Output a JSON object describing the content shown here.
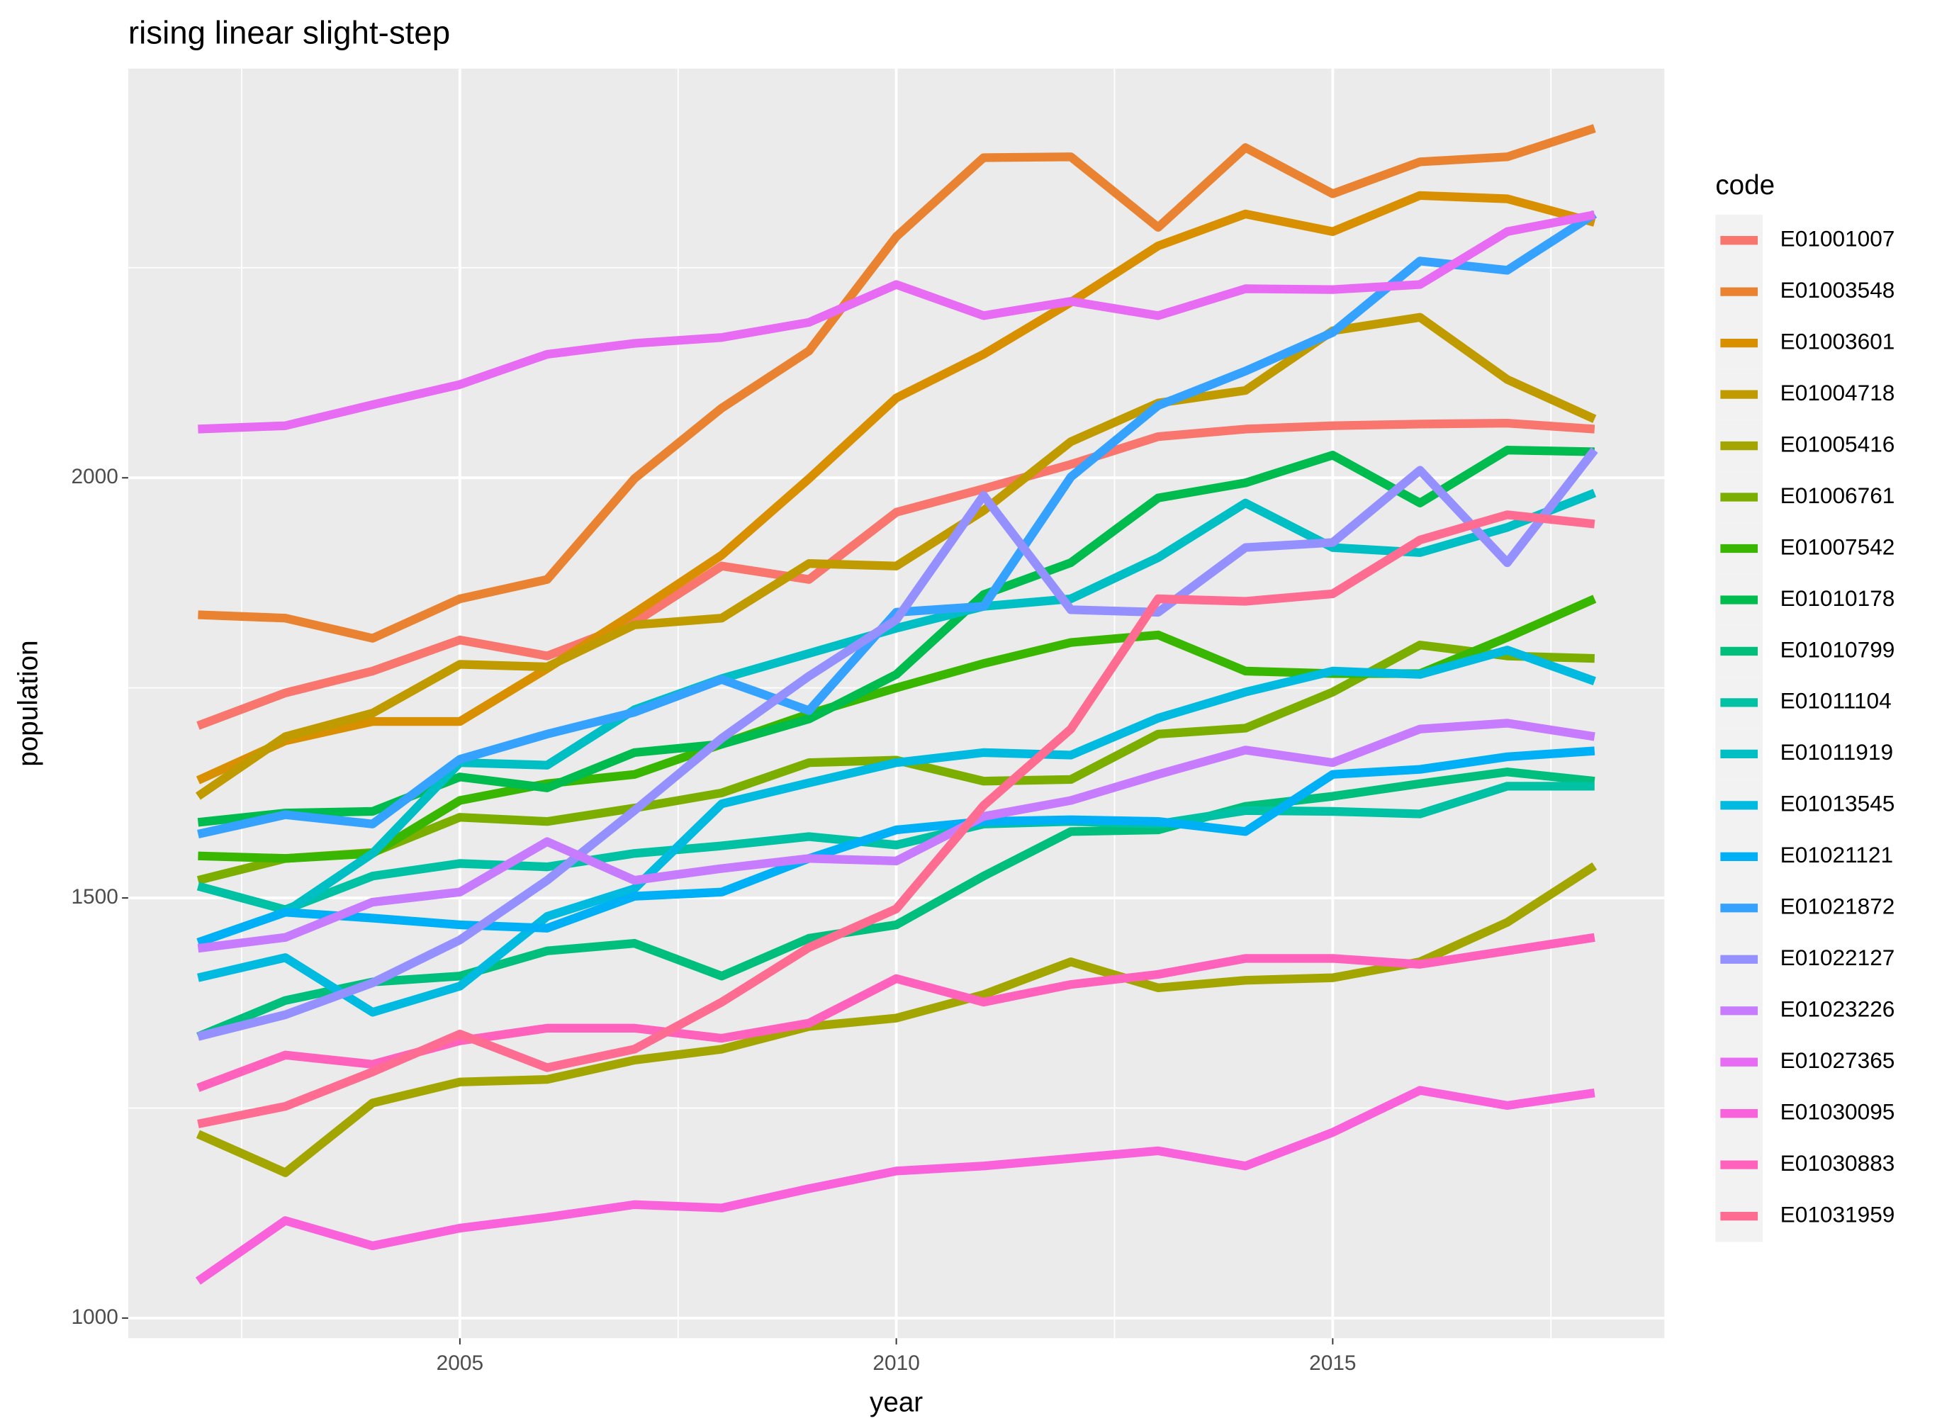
{
  "chart_data": {
    "type": "line",
    "title": "rising linear slight-step",
    "x_label": "year",
    "y_label": "population",
    "legend_title": "code",
    "legend_position": "right",
    "grid": true,
    "x": [
      2002,
      2003,
      2004,
      2005,
      2006,
      2007,
      2008,
      2009,
      2010,
      2011,
      2012,
      2013,
      2014,
      2015,
      2016,
      2017,
      2018
    ],
    "xlim": [
      2001.2,
      2018.8
    ],
    "xticks": [
      2005,
      2010,
      2015
    ],
    "ylim": [
      976,
      2487
    ],
    "yticks": [
      1000,
      1500,
      2000
    ],
    "series": [
      {
        "name": "E01001007",
        "color": "#F8766D",
        "values": [
          1705,
          1744,
          1770,
          1807,
          1788,
          1828,
          1895,
          1879,
          1959,
          1987,
          2016,
          2049,
          2058,
          2062,
          2064,
          2065,
          2058
        ]
      },
      {
        "name": "E01003548",
        "color": "#EA8331",
        "values": [
          1837,
          1833,
          1809,
          1856,
          1879,
          1999,
          2083,
          2151,
          2287,
          2381,
          2382,
          2298,
          2393,
          2338,
          2376,
          2382,
          2416
        ]
      },
      {
        "name": "E01003601",
        "color": "#D89000",
        "values": [
          1640,
          1687,
          1710,
          1710,
          1773,
          1839,
          1908,
          1999,
          2095,
          2147,
          2209,
          2276,
          2314,
          2293,
          2336,
          2332,
          2304
        ]
      },
      {
        "name": "E01004718",
        "color": "#C09B00",
        "values": [
          1621,
          1692,
          1720,
          1778,
          1775,
          1825,
          1833,
          1898,
          1895,
          1961,
          2043,
          2089,
          2104,
          2175,
          2191,
          2117,
          2070
        ]
      },
      {
        "name": "E01005416",
        "color": "#A3A500",
        "values": [
          1219,
          1173,
          1256,
          1281,
          1284,
          1307,
          1320,
          1347,
          1357,
          1385,
          1424,
          1393,
          1402,
          1405,
          1424,
          1471,
          1538
        ]
      },
      {
        "name": "E01006761",
        "color": "#7CAE00",
        "values": [
          1521,
          1547,
          1554,
          1596,
          1591,
          1607,
          1625,
          1661,
          1664,
          1639,
          1641,
          1695,
          1702,
          1745,
          1801,
          1788,
          1785
        ]
      },
      {
        "name": "E01007542",
        "color": "#39B600",
        "values": [
          1550,
          1547,
          1553,
          1616,
          1636,
          1647,
          1683,
          1719,
          1750,
          1779,
          1804,
          1813,
          1770,
          1767,
          1767,
          1810,
          1856
        ]
      },
      {
        "name": "E01010178",
        "color": "#00BB4E",
        "values": [
          1590,
          1601,
          1603,
          1644,
          1631,
          1673,
          1683,
          1713,
          1766,
          1861,
          1899,
          1976,
          1994,
          2027,
          1970,
          2033,
          2031
        ]
      },
      {
        "name": "E01010799",
        "color": "#00BF7D",
        "values": [
          1335,
          1378,
          1400,
          1407,
          1437,
          1446,
          1407,
          1452,
          1468,
          1526,
          1579,
          1581,
          1609,
          1621,
          1636,
          1650,
          1639
        ]
      },
      {
        "name": "E01011104",
        "color": "#00C1A3",
        "values": [
          1514,
          1486,
          1526,
          1541,
          1537,
          1553,
          1562,
          1573,
          1563,
          1588,
          1591,
          1588,
          1604,
          1603,
          1600,
          1633,
          1633
        ]
      },
      {
        "name": "E01011919",
        "color": "#00BFC4",
        "values": [
          1447,
          1483,
          1553,
          1661,
          1658,
          1724,
          1761,
          1791,
          1821,
          1847,
          1856,
          1905,
          1970,
          1917,
          1911,
          1941,
          1982
        ]
      },
      {
        "name": "E01013545",
        "color": "#00BAE0",
        "values": [
          1405,
          1429,
          1364,
          1395,
          1478,
          1511,
          1612,
          1637,
          1661,
          1673,
          1670,
          1714,
          1745,
          1770,
          1766,
          1795,
          1758
        ]
      },
      {
        "name": "E01021121",
        "color": "#00B0F6",
        "values": [
          1447,
          1483,
          1476,
          1468,
          1464,
          1502,
          1507,
          1547,
          1581,
          1591,
          1593,
          1591,
          1579,
          1647,
          1653,
          1668,
          1675
        ]
      },
      {
        "name": "E01021872",
        "color": "#35A2FF",
        "values": [
          1576,
          1599,
          1588,
          1665,
          1695,
          1721,
          1760,
          1723,
          1840,
          1847,
          2001,
          2086,
          2127,
          2173,
          2258,
          2247,
          2314
        ]
      },
      {
        "name": "E01022127",
        "color": "#9590FF",
        "values": [
          1335,
          1361,
          1399,
          1450,
          1521,
          1604,
          1690,
          1764,
          1831,
          1979,
          1843,
          1840,
          1917,
          1923,
          2009,
          1899,
          2033
        ]
      },
      {
        "name": "E01023226",
        "color": "#C77CFF",
        "values": [
          1440,
          1453,
          1495,
          1507,
          1567,
          1521,
          1535,
          1547,
          1544,
          1597,
          1616,
          1647,
          1676,
          1661,
          1701,
          1708,
          1692
        ]
      },
      {
        "name": "E01027365",
        "color": "#E76BF3",
        "values": [
          2058,
          2062,
          2087,
          2111,
          2147,
          2160,
          2167,
          2185,
          2230,
          2193,
          2210,
          2193,
          2225,
          2224,
          2230,
          2293,
          2313
        ]
      },
      {
        "name": "E01030095",
        "color": "#FA62DB",
        "values": [
          1044,
          1116,
          1086,
          1107,
          1120,
          1135,
          1131,
          1154,
          1175,
          1181,
          1190,
          1199,
          1181,
          1221,
          1271,
          1253,
          1268
        ]
      },
      {
        "name": "E01030883",
        "color": "#FF62BC",
        "values": [
          1274,
          1313,
          1302,
          1330,
          1345,
          1345,
          1333,
          1351,
          1404,
          1376,
          1397,
          1409,
          1428,
          1428,
          1421,
          1437,
          1453
        ]
      },
      {
        "name": "E01031959",
        "color": "#FF6C91",
        "values": [
          1231,
          1252,
          1293,
          1338,
          1298,
          1320,
          1376,
          1441,
          1487,
          1610,
          1701,
          1856,
          1853,
          1862,
          1926,
          1956,
          1945
        ]
      }
    ]
  }
}
